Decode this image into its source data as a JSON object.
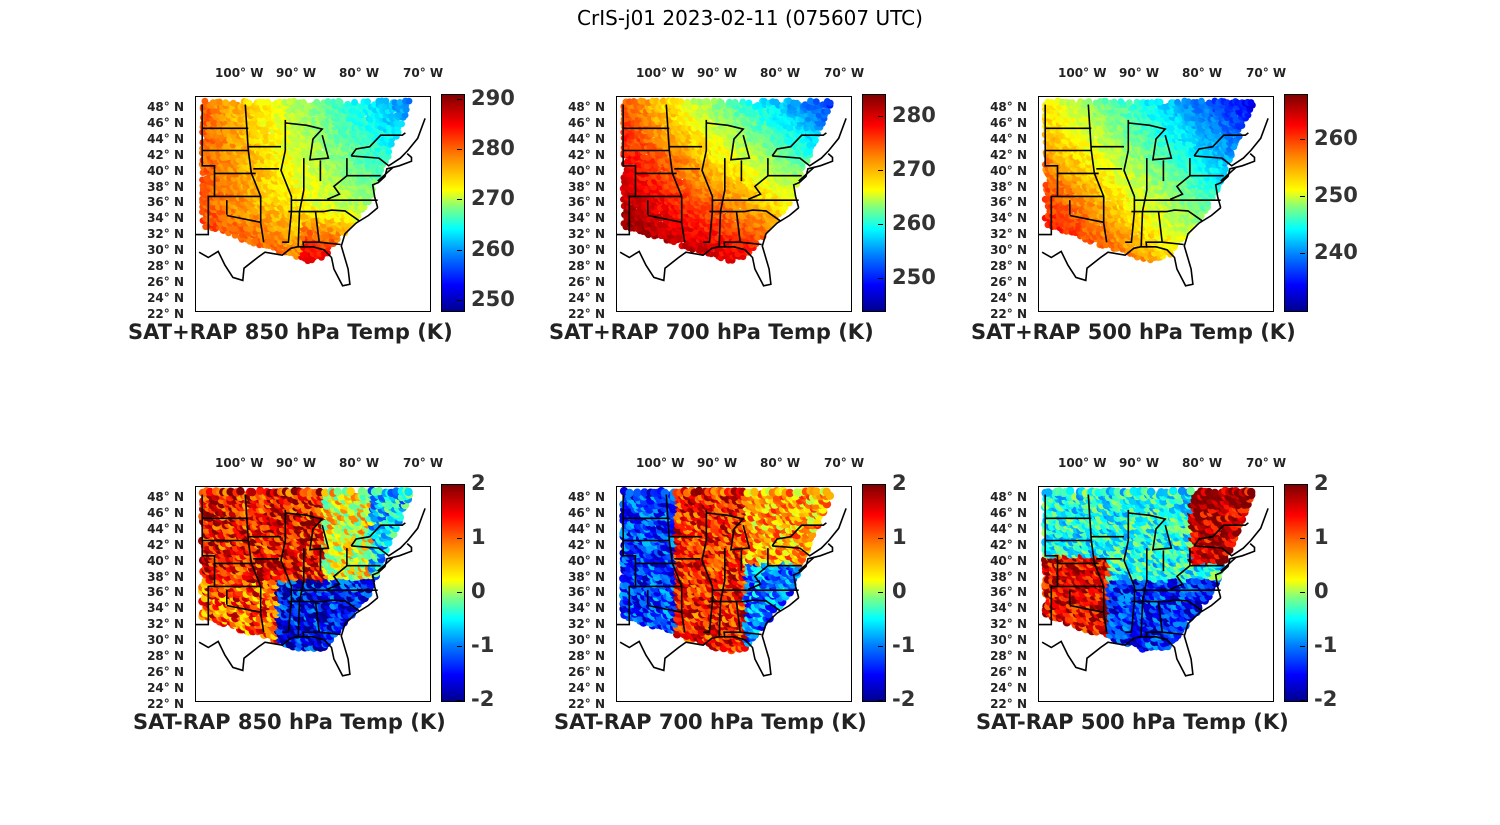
{
  "figure_title": "CrIS-j01 2023-02-11 (075607 UTC)",
  "colormap": [
    "#00008f",
    "#0000ff",
    "#0080ff",
    "#00ffff",
    "#80ff80",
    "#ffff00",
    "#ff8000",
    "#ff0000",
    "#800000"
  ],
  "lon_labels": [
    "100° W",
    "90° W",
    "80° W",
    "70° W"
  ],
  "lat_labels": [
    "48° N",
    "46° N",
    "44° N",
    "42° N",
    "40° N",
    "38° N",
    "36° N",
    "34° N",
    "32° N",
    "30° N",
    "28° N",
    "26° N",
    "24° N",
    "22° N"
  ],
  "chart_data": [
    {
      "type": "heatmap",
      "title": "SAT+RAP 850 hPa Temp (K)",
      "colorbar_ticks": [
        "290",
        "280",
        "270",
        "260",
        "250"
      ],
      "colorbar_range": [
        248,
        291
      ],
      "lon_range": [
        -105,
        -67
      ],
      "lat_range": [
        22,
        50
      ]
    },
    {
      "type": "heatmap",
      "title": "SAT+RAP 700 hPa Temp (K)",
      "colorbar_ticks": [
        "280",
        "270",
        "260",
        "250"
      ],
      "colorbar_range": [
        244,
        284
      ],
      "lon_range": [
        -105,
        -67
      ],
      "lat_range": [
        22,
        50
      ]
    },
    {
      "type": "heatmap",
      "title": "SAT+RAP 500 hPa Temp (K)",
      "colorbar_ticks": [
        "260",
        "250",
        "240"
      ],
      "colorbar_range": [
        230,
        268
      ],
      "lon_range": [
        -105,
        -67
      ],
      "lat_range": [
        22,
        50
      ]
    },
    {
      "type": "heatmap",
      "title": "SAT-RAP 850 hPa Temp (K)",
      "colorbar_ticks": [
        "2",
        "1",
        "0",
        "-1",
        "-2"
      ],
      "colorbar_range": [
        -2,
        2
      ],
      "lon_range": [
        -105,
        -67
      ],
      "lat_range": [
        22,
        50
      ]
    },
    {
      "type": "heatmap",
      "title": "SAT-RAP 700 hPa Temp (K)",
      "colorbar_ticks": [
        "2",
        "1",
        "0",
        "-1",
        "-2"
      ],
      "colorbar_range": [
        -2,
        2
      ],
      "lon_range": [
        -105,
        -67
      ],
      "lat_range": [
        22,
        50
      ]
    },
    {
      "type": "heatmap",
      "title": "SAT-RAP 500 hPa Temp (K)",
      "colorbar_ticks": [
        "2",
        "1",
        "0",
        "-1",
        "-2"
      ],
      "colorbar_range": [
        -2,
        2
      ],
      "lon_range": [
        -105,
        -67
      ],
      "lat_range": [
        22,
        50
      ]
    }
  ]
}
